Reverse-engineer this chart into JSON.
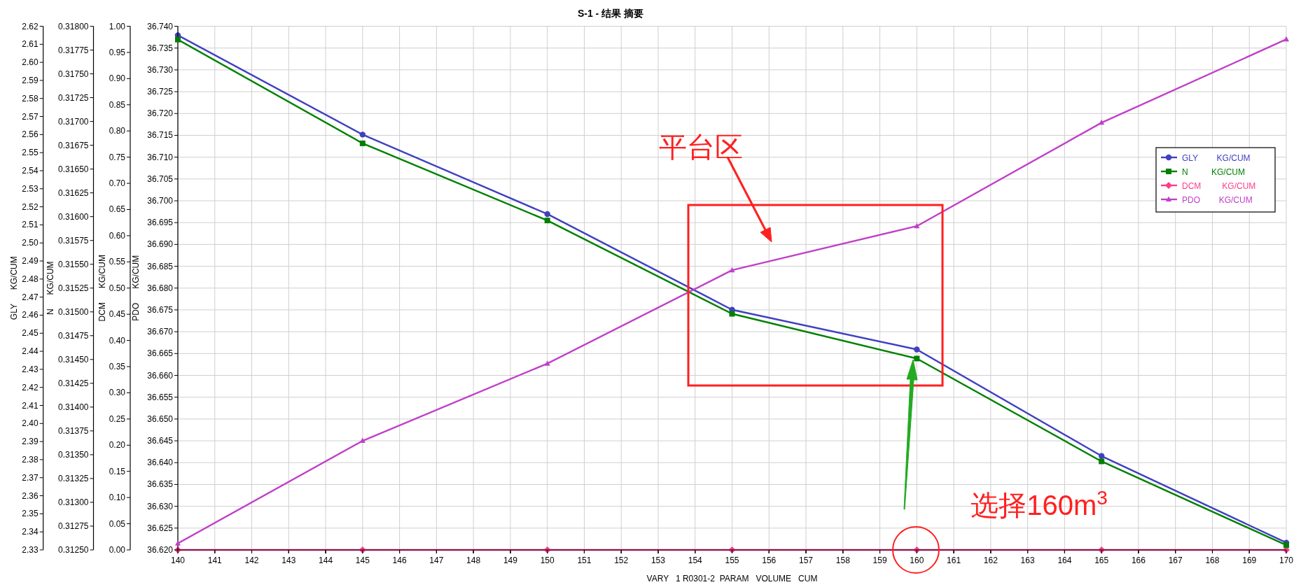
{
  "chart_data": [
    {
      "type": "line",
      "title": "S-1 - 结果 摘要",
      "xlabel": "VARY   1 R0301-2  PARAM   VOLUME   CUM",
      "ylabel": "PDO      KG/CUM",
      "y2label": "N      KG/CUM",
      "x": [
        140,
        145,
        150,
        155,
        160,
        165,
        170
      ],
      "xlim": [
        140,
        170
      ],
      "xticks": [
        140,
        141,
        142,
        143,
        144,
        145,
        146,
        147,
        148,
        149,
        150,
        151,
        152,
        153,
        154,
        155,
        156,
        157,
        158,
        159,
        160,
        161,
        162,
        163,
        164,
        165,
        166,
        167,
        168,
        169,
        170
      ],
      "ylim": [
        36.62,
        36.74
      ],
      "yticks": [
        {
          "value": 36.62,
          "label": "36.620"
        },
        36.625,
        {
          "value": 36.63,
          "label": "36.630"
        },
        36.635,
        {
          "value": 36.64,
          "label": "36.640"
        },
        36.645,
        {
          "value": 36.65,
          "label": "36.650"
        },
        36.655,
        {
          "value": 36.66,
          "label": "36.660"
        },
        36.665,
        {
          "value": 36.67,
          "label": "36.670"
        },
        36.675,
        {
          "value": 36.68,
          "label": "36.680"
        },
        36.685,
        {
          "value": 36.69,
          "label": "36.690"
        },
        36.695,
        {
          "value": 36.7,
          "label": "36.700"
        },
        36.705,
        {
          "value": 36.71,
          "label": "36.710"
        },
        36.715,
        {
          "value": 36.72,
          "label": "36.720"
        },
        36.725,
        {
          "value": 36.73,
          "label": "36.730"
        },
        36.735,
        {
          "value": 36.74,
          "label": "36.740"
        }
      ],
      "y2lim": [
        0.3125,
        0.318
      ],
      "y2ticks": [
        {
          "value": 0.3125,
          "label": "0.31250"
        },
        {
          "value": 0.31275,
          "label": "0.31275"
        },
        {
          "value": 0.313,
          "label": "0.31300"
        },
        {
          "value": 0.31325,
          "label": "0.31325"
        },
        {
          "value": 0.3135,
          "label": "0.31350"
        },
        {
          "value": 0.31375,
          "label": "0.31375"
        },
        {
          "value": 0.314,
          "label": "0.31400"
        },
        {
          "value": 0.31425,
          "label": "0.31425"
        },
        {
          "value": 0.3145,
          "label": "0.31450"
        },
        {
          "value": 0.31475,
          "label": "0.31475"
        },
        {
          "value": 0.315,
          "label": "0.31500"
        },
        {
          "value": 0.31525,
          "label": "0.31525"
        },
        {
          "value": 0.3155,
          "label": "0.31550"
        },
        {
          "value": 0.31575,
          "label": "0.31575"
        },
        {
          "value": 0.316,
          "label": "0.31600"
        },
        {
          "value": 0.31625,
          "label": "0.31625"
        },
        {
          "value": 0.3165,
          "label": "0.31650"
        },
        {
          "value": 0.31675,
          "label": "0.31675"
        },
        {
          "value": 0.317,
          "label": "0.31700"
        },
        {
          "value": 0.31725,
          "label": "0.31725"
        },
        {
          "value": 0.3175,
          "label": "0.31750"
        },
        {
          "value": 0.31775,
          "label": "0.31775"
        },
        {
          "value": 0.318,
          "label": "0.31800"
        }
      ],
      "series": [
        {
          "name": "N          KG/CUM",
          "color": "#008000",
          "axis": "y2",
          "values": [
            0.31786,
            0.31677,
            0.31596,
            0.31498,
            0.31451,
            0.31343,
            0.31255
          ]
        },
        {
          "name": "PDO        KG/CUM",
          "color": "#c040c8",
          "values": [
            36.6215,
            36.645,
            36.6627,
            36.6841,
            36.6942,
            36.7179,
            36.737
          ]
        }
      ],
      "marker": [
        "square",
        "triangle"
      ],
      "grid": true,
      "legend": "top right",
      "annotations": [
        "平台区",
        "选择160m$^{3}$"
      ]
    },
    {
      "type": "line",
      "ylabel": "DCM      KG/CUM",
      "x": [
        140,
        145,
        150,
        155,
        160,
        165,
        170
      ],
      "xlim": [
        140,
        170
      ],
      "xticks": [
        140,
        141,
        142,
        143,
        144,
        145,
        146,
        147,
        148,
        149,
        150,
        151,
        152,
        153,
        154,
        155,
        156,
        157,
        158,
        159,
        160,
        161,
        162,
        163,
        164,
        165,
        166,
        167,
        168,
        169,
        170
      ],
      "ylim": [
        0,
        1
      ],
      "yticks": [
        {
          "value": 0,
          "label": "0.00"
        },
        0.05,
        {
          "value": 0.1,
          "label": "0.10"
        },
        0.15,
        {
          "value": 0.2,
          "label": "0.20"
        },
        0.25,
        {
          "value": 0.3,
          "label": "0.30"
        },
        0.35,
        {
          "value": 0.4,
          "label": "0.40"
        },
        0.45,
        {
          "value": 0.5,
          "label": "0.50"
        },
        0.55,
        {
          "value": 0.6,
          "label": "0.60"
        },
        0.65,
        {
          "value": 0.7,
          "label": "0.70"
        },
        0.75,
        {
          "value": 0.8,
          "label": "0.80"
        },
        0.85,
        {
          "value": 0.9,
          "label": "0.90"
        },
        0.95,
        {
          "value": 1,
          "label": "1.00"
        }
      ],
      "series": [
        {
          "name": "DCM         KG/CUM",
          "color": "#ff3c8c",
          "values": [
            0,
            0,
            0,
            0,
            0,
            0,
            0
          ]
        }
      ],
      "marker": "diamond",
      "legend": "top right",
      "tick_labels": "y"
    },
    {
      "type": "line",
      "ylabel": "GLY      KG/CUM",
      "x": [
        140,
        145,
        150,
        155,
        160,
        165,
        170
      ],
      "xlim": [
        140,
        170
      ],
      "xticks": [
        140,
        141,
        142,
        143,
        144,
        145,
        146,
        147,
        148,
        149,
        150,
        151,
        152,
        153,
        154,
        155,
        156,
        157,
        158,
        159,
        160,
        161,
        162,
        163,
        164,
        165,
        166,
        167,
        168,
        169,
        170
      ],
      "ylim": [
        2.33,
        2.62
      ],
      "yticks": [
        2.33,
        2.34,
        2.35,
        2.36,
        2.37,
        2.38,
        2.39,
        {
          "value": 2.4,
          "label": "2.40"
        },
        2.41,
        2.42,
        2.43,
        2.44,
        2.45,
        2.46,
        2.47,
        2.48,
        2.49,
        {
          "value": 2.5,
          "label": "2.50"
        },
        2.51,
        2.52,
        2.53,
        2.54,
        2.55,
        2.56,
        2.57,
        2.58,
        2.59,
        {
          "value": 2.6,
          "label": "2.60"
        },
        2.61,
        2.62
      ],
      "series": [
        {
          "name": "GLY        KG/CUM",
          "color": "#4040c0",
          "values": [
            2.615,
            2.56,
            2.516,
            2.463,
            2.441,
            2.382,
            2.334
          ]
        }
      ],
      "marker": "circle",
      "legend": "top right",
      "tick_labels": "y"
    }
  ]
}
